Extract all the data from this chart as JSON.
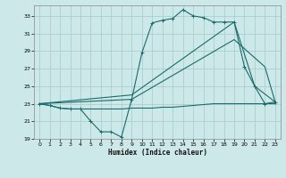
{
  "xlabel": "Humidex (Indice chaleur)",
  "bg_color": "#cde8e8",
  "grid_color": "#aacfcf",
  "line_color": "#1a6b6b",
  "xlim": [
    -0.5,
    23.5
  ],
  "ylim": [
    19,
    34.2
  ],
  "xticks": [
    0,
    1,
    2,
    3,
    4,
    5,
    6,
    7,
    8,
    9,
    10,
    11,
    12,
    13,
    14,
    15,
    16,
    17,
    18,
    19,
    20,
    21,
    22,
    23
  ],
  "yticks": [
    19,
    21,
    23,
    25,
    27,
    29,
    31,
    33
  ],
  "line1_x": [
    0,
    1,
    2,
    3,
    4,
    5,
    6,
    7,
    8,
    9,
    10,
    11,
    12,
    13,
    14,
    15,
    16,
    17,
    18,
    19,
    20,
    21,
    22,
    23
  ],
  "line1_y": [
    23.0,
    22.8,
    22.5,
    22.4,
    22.4,
    21.0,
    19.8,
    19.8,
    19.2,
    23.5,
    28.8,
    32.2,
    32.5,
    32.7,
    33.7,
    33.0,
    32.8,
    32.3,
    32.3,
    32.3,
    27.2,
    25.0,
    23.0,
    23.2
  ],
  "line2_x": [
    0,
    1,
    2,
    3,
    4,
    5,
    6,
    7,
    8,
    9,
    10,
    11,
    12,
    13,
    14,
    15,
    16,
    17,
    18,
    19,
    20,
    21,
    22,
    23
  ],
  "line2_y": [
    23.0,
    22.8,
    22.5,
    22.4,
    22.4,
    22.4,
    22.4,
    22.4,
    22.4,
    22.5,
    22.5,
    22.5,
    22.6,
    22.6,
    22.7,
    22.8,
    22.9,
    23.0,
    23.0,
    23.0,
    23.0,
    23.0,
    23.0,
    23.0
  ],
  "line3_x": [
    0,
    9,
    19,
    22,
    23
  ],
  "line3_y": [
    23.0,
    23.5,
    30.3,
    27.2,
    23.2
  ],
  "line4_x": [
    0,
    9,
    19,
    21,
    23
  ],
  "line4_y": [
    23.0,
    24.0,
    32.3,
    25.0,
    23.2
  ]
}
